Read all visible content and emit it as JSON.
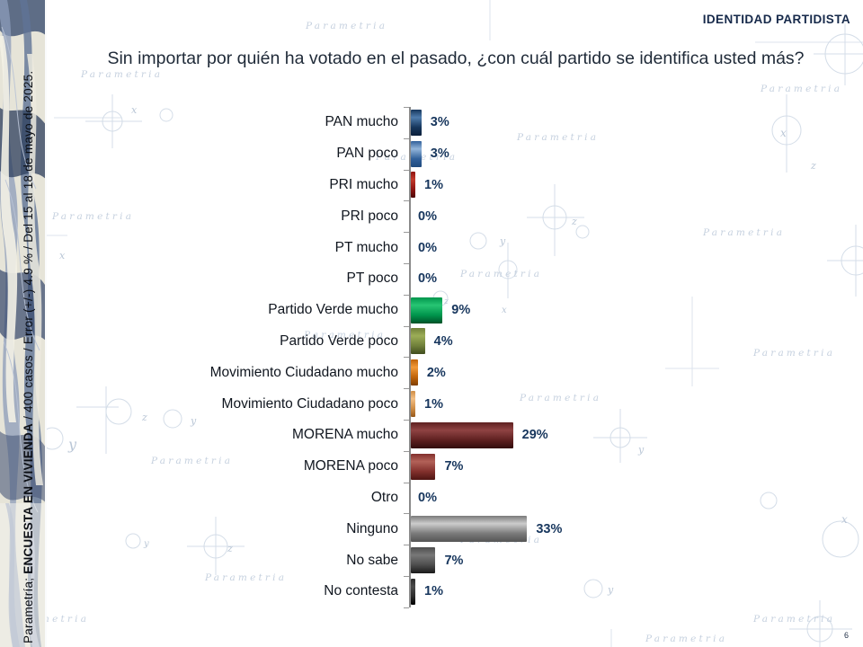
{
  "banner": {
    "label": "IDENTIDAD PARTIDISTA"
  },
  "title": "Sin importar por quién ha votado en el pasado, ¿con cuál partido se identifica usted más?",
  "sidebar_caption": {
    "prefix": "Parametría; ",
    "bold": "ENCUESTA EN VIVIENDA",
    "suffix": " / 400 casos / Error (+/-) 4.9 % / Del 15 al 18 de mayo de 2025."
  },
  "page_number": "6",
  "watermark": {
    "word": "Parametria"
  },
  "chart_data": {
    "type": "bar",
    "orientation": "horizontal",
    "title": "Sin importar por quién ha votado en el pasado, ¿con cuál partido se identifica usted más?",
    "unit": "%",
    "xlim": [
      0,
      35
    ],
    "grid": false,
    "axis_color": "#8a8a8a",
    "category_label_color": "#10161f",
    "value_label_color": "#17365d",
    "categories": [
      "PAN mucho",
      "PAN poco",
      "PRI mucho",
      "PRI poco",
      "PT mucho",
      "PT poco",
      "Partido Verde mucho",
      "Partido Verde poco",
      "Movimiento Ciudadano mucho",
      "Movimiento Ciudadano poco",
      "MORENA mucho",
      "MORENA poco",
      "Otro",
      "Ninguno",
      "No sabe",
      "No contesta"
    ],
    "values": [
      3,
      3,
      1,
      0,
      0,
      0,
      9,
      4,
      2,
      1,
      29,
      7,
      0,
      33,
      7,
      1
    ],
    "value_labels": [
      "3%",
      "3%",
      "1%",
      "0%",
      "0%",
      "0%",
      "9%",
      "4%",
      "2%",
      "1%",
      "29%",
      "7%",
      "0%",
      "33%",
      "7%",
      "1%"
    ],
    "bar_gradients": [
      [
        "#16365c",
        "#4f7cac",
        "#0b1f3a"
      ],
      [
        "#31609a",
        "#93b5da",
        "#1f4a7d"
      ],
      [
        "#8e1311",
        "#c2392b",
        "#4c0606"
      ],
      null,
      null,
      null,
      [
        "#00954c",
        "#27c573",
        "#005128"
      ],
      [
        "#70803a",
        "#9cad57",
        "#414d1e"
      ],
      [
        "#bf6309",
        "#f29a38",
        "#7e3f03"
      ],
      [
        "#cf8d45",
        "#f3bf85",
        "#96591c"
      ],
      [
        "#5e2020",
        "#8f4343",
        "#320d0d"
      ],
      [
        "#82302c",
        "#b26158",
        "#4e1412"
      ],
      null,
      [
        "#7a7a7a",
        "#cccccc",
        "#555555"
      ],
      [
        "#4d4d4d",
        "#787878",
        "#1a1a1a"
      ],
      [
        "#2b2b2b",
        "#4a4a4a",
        "#000000"
      ]
    ]
  }
}
